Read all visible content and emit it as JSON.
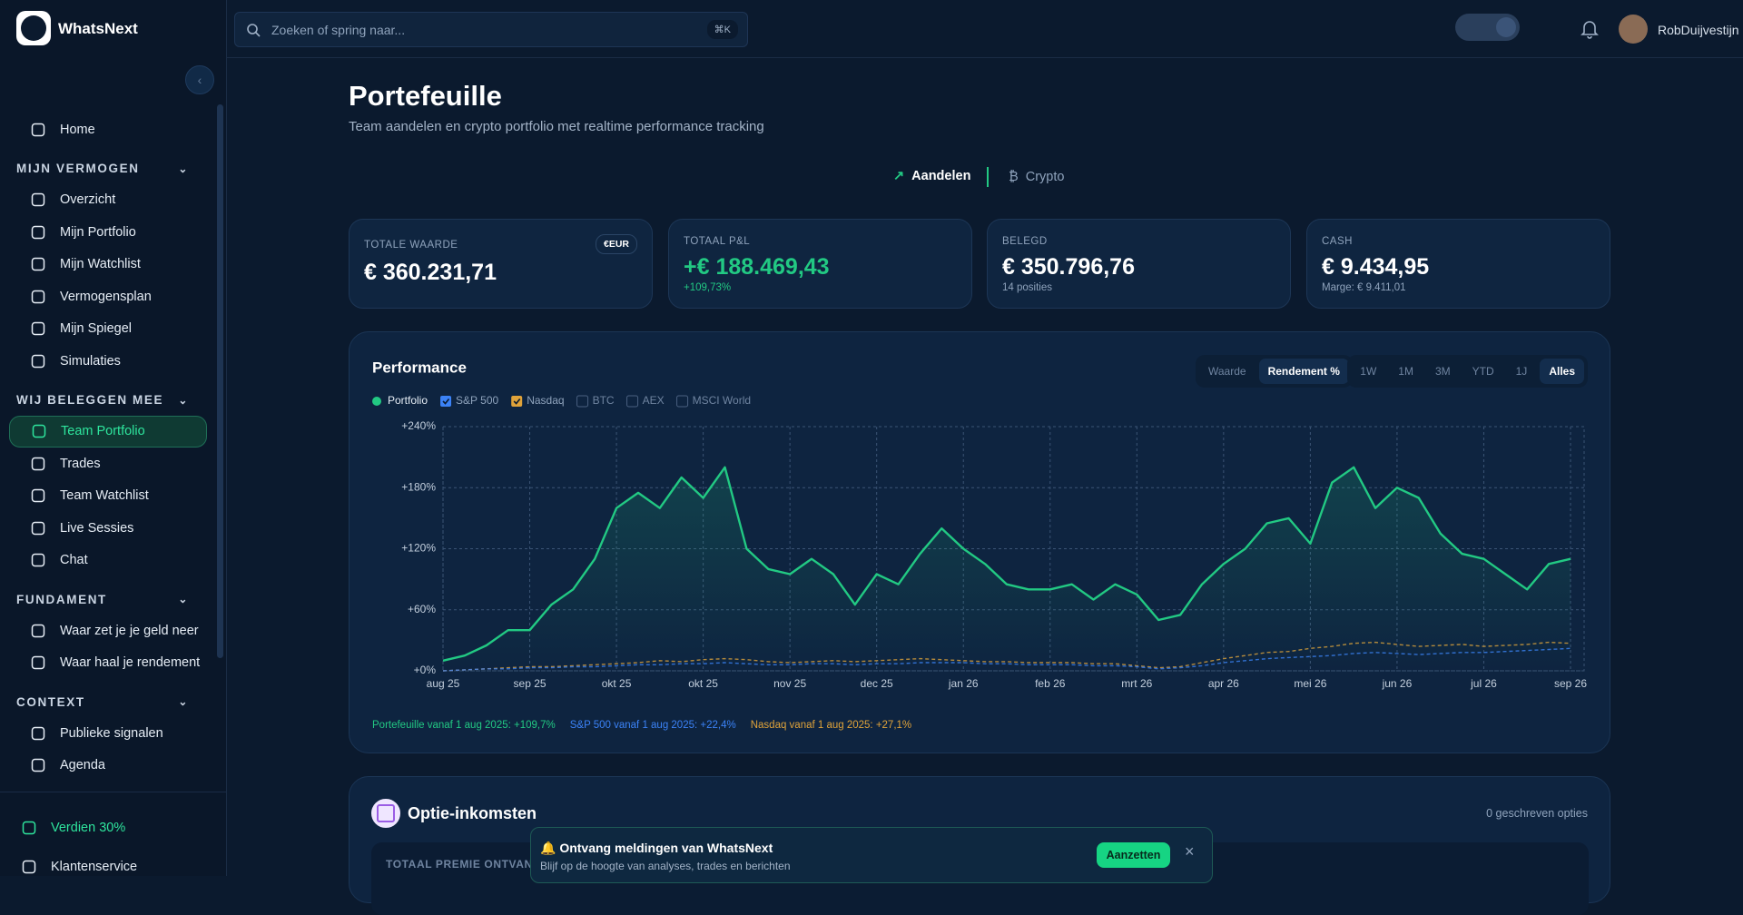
{
  "brand": "WhatsNext",
  "search": {
    "placeholder": "Zoeken of spring naar...",
    "shortcut": "⌘K"
  },
  "user": "RobDuijvestijn",
  "nav": [
    {
      "items": [
        "Home"
      ]
    },
    {
      "title": "MIJN VERMOGEN",
      "items": [
        "Overzicht",
        "Mijn Portfolio",
        "Mijn Watchlist",
        "Vermogensplan",
        "Mijn Spiegel",
        "Simulaties"
      ]
    },
    {
      "title": "WIJ BELEGGEN MEE",
      "items": [
        "Team Portfolio",
        "Trades",
        "Team Watchlist",
        "Live Sessies",
        "Chat"
      ]
    },
    {
      "title": "FUNDAMENT",
      "items": [
        "Waar zet je je geld neer",
        "Waar haal je rendement"
      ]
    },
    {
      "title": "CONTEXT",
      "items": [
        "Publieke signalen",
        "Agenda"
      ]
    }
  ],
  "sidebar_footer": [
    "Verdien 30%",
    "Klantenservice"
  ],
  "page": {
    "title": "Portefeuille",
    "subtitle": "Team aandelen en crypto portfolio met realtime performance tracking",
    "tabs": [
      "Aandelen",
      "Crypto"
    ]
  },
  "cards": [
    {
      "label": "TOTALE WAARDE",
      "value": "€ 360.231,71",
      "badge": "€EUR"
    },
    {
      "label": "TOTAAL P&L",
      "value": "+€ 188.469,43",
      "sub": "+109,73%"
    },
    {
      "label": "BELEGD",
      "value": "€ 350.796,76",
      "sub": "14 posities"
    },
    {
      "label": "CASH",
      "value": "€ 9.434,95",
      "sub": "Marge: € 9.411,01"
    }
  ],
  "chart_controls": {
    "modes": [
      "Waarde",
      "Rendement %"
    ],
    "ranges": [
      "1W",
      "1M",
      "3M",
      "YTD",
      "1J",
      "Alles"
    ]
  },
  "chart_data": {
    "type": "line",
    "title": "Performance",
    "categories": [
      "aug 25",
      null,
      null,
      null,
      "sep 25",
      null,
      null,
      null,
      "okt 25",
      null,
      null,
      null,
      "okt 25",
      null,
      null,
      null,
      "nov 25",
      null,
      null,
      null,
      "dec 25",
      null,
      null,
      null,
      "jan 26",
      null,
      null,
      null,
      "feb 26",
      null,
      null,
      null,
      "mrt 26",
      null,
      null,
      null,
      "apr 26",
      null,
      null,
      null,
      "mei 26",
      null,
      null,
      null,
      "jun 26",
      null,
      null,
      null,
      "jul 26",
      null,
      null,
      null,
      "sep 26"
    ],
    "series": [
      {
        "name": "Portfolio",
        "color": "#22c983",
        "values": [
          10,
          15,
          25,
          40,
          40,
          65,
          80,
          110,
          160,
          175,
          160,
          190,
          170,
          200,
          120,
          100,
          95,
          110,
          95,
          65,
          95,
          85,
          115,
          140,
          120,
          105,
          85,
          80,
          80,
          85,
          70,
          85,
          75,
          50,
          55,
          85,
          105,
          120,
          145,
          150,
          125,
          185,
          200,
          160,
          180,
          170,
          135,
          115,
          110,
          95,
          80,
          105,
          110
        ]
      },
      {
        "name": "S&P 500",
        "color": "#3b82f6",
        "values": [
          0,
          1,
          2,
          2,
          3,
          3,
          4,
          4,
          5,
          6,
          6,
          7,
          7,
          8,
          7,
          6,
          6,
          7,
          7,
          6,
          7,
          7,
          8,
          8,
          8,
          7,
          7,
          6,
          6,
          6,
          5,
          5,
          4,
          2,
          3,
          5,
          8,
          10,
          12,
          13,
          14,
          15,
          17,
          18,
          17,
          16,
          17,
          18,
          18,
          19,
          20,
          21,
          22
        ]
      },
      {
        "name": "Nasdaq",
        "color": "#e0a33a",
        "values": [
          0,
          1,
          2,
          3,
          4,
          4,
          5,
          6,
          7,
          8,
          10,
          9,
          11,
          12,
          11,
          9,
          8,
          9,
          10,
          9,
          10,
          11,
          12,
          11,
          10,
          9,
          9,
          8,
          8,
          8,
          7,
          7,
          5,
          3,
          4,
          8,
          12,
          15,
          18,
          19,
          22,
          24,
          27,
          28,
          26,
          24,
          25,
          26,
          24,
          25,
          26,
          28,
          27
        ]
      }
    ],
    "benchmarks_off": [
      "BTC",
      "AEX",
      "MSCI World"
    ],
    "ylim": [
      0,
      240
    ],
    "yticks": [
      {
        "value": 0,
        "label": "+0%"
      },
      {
        "value": 60,
        "label": "+60%"
      },
      {
        "value": 120,
        "label": "+120%"
      },
      {
        "value": 180,
        "label": "+180%"
      },
      {
        "value": 240,
        "label": "+240%"
      }
    ],
    "grid": true,
    "annotations": [
      "Portefeuille vanaf 1 aug 2025: +109,7%",
      "S&P 500 vanaf 1 aug 2025: +22,4%",
      "Nasdaq vanaf 1 aug 2025: +27,1%"
    ]
  },
  "options": {
    "title": "Optie-inkomsten",
    "count": "0 geschreven opties",
    "label": "TOTAAL PREMIE ONTVANGEN"
  },
  "toast": {
    "title": "🔔 Ontvang meldingen van WhatsNext",
    "text": "Blijf op de hoogte van analyses, trades en berichten",
    "button": "Aanzetten"
  }
}
